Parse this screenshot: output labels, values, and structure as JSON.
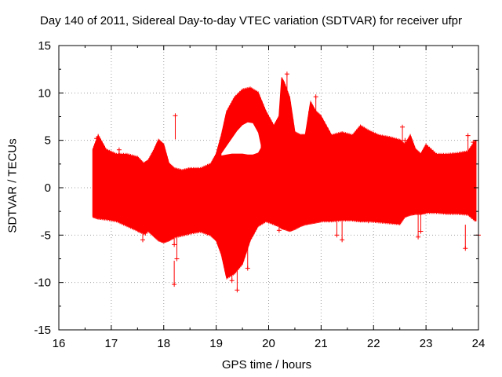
{
  "chart_data": {
    "type": "scatter",
    "title": "Day 140 of 2011, Sidereal Day-to-day VTEC variation (SDTVAR) for receiver ufpr",
    "xlabel": "GPS time / hours",
    "ylabel": "SDTVAR / TECUs",
    "xlim": [
      16,
      24
    ],
    "ylim": [
      -15,
      15
    ],
    "xticks": [
      "16",
      "17",
      "18",
      "19",
      "20",
      "21",
      "22",
      "23",
      "24"
    ],
    "yticks": [
      "-15",
      "-10",
      "-5",
      "0",
      "5",
      "10",
      "15"
    ],
    "grid": true,
    "series": [
      {
        "name": "SDTVAR",
        "color": "#ff0000",
        "marker": "+",
        "envelope": {
          "x": [
            16.65,
            16.75,
            16.9,
            17.1,
            17.3,
            17.5,
            17.62,
            17.7,
            17.8,
            17.9,
            18.0,
            18.1,
            18.2,
            18.35,
            18.5,
            18.7,
            18.9,
            19.0,
            19.1,
            19.2,
            19.35,
            19.5,
            19.65,
            19.8,
            19.95,
            20.1,
            20.2,
            20.25,
            20.3,
            20.4,
            20.5,
            20.6,
            20.7,
            20.8,
            20.9,
            21.0,
            21.2,
            21.4,
            21.6,
            21.75,
            21.9,
            22.1,
            22.3,
            22.5,
            22.6,
            22.7,
            22.8,
            22.9,
            23.0,
            23.2,
            23.4,
            23.6,
            23.8,
            23.95
          ],
          "upper": [
            4.0,
            5.5,
            4.0,
            3.5,
            3.5,
            3.2,
            2.5,
            2.8,
            3.8,
            5.0,
            4.5,
            2.5,
            2.0,
            1.8,
            2.0,
            2.0,
            2.5,
            3.5,
            5.5,
            8.0,
            9.5,
            10.3,
            10.5,
            10.0,
            8.0,
            6.5,
            7.5,
            11.5,
            11.0,
            9.5,
            5.8,
            5.5,
            5.5,
            9.0,
            8.0,
            7.5,
            5.5,
            5.8,
            5.5,
            6.5,
            6.0,
            5.5,
            5.3,
            5.0,
            4.5,
            5.5,
            4.0,
            3.5,
            4.5,
            3.5,
            3.5,
            3.6,
            3.8,
            5.0
          ],
          "lower": [
            -3.0,
            -3.2,
            -3.3,
            -3.5,
            -4.0,
            -4.5,
            -4.8,
            -4.5,
            -5.0,
            -5.5,
            -5.7,
            -5.5,
            -5.2,
            -5.0,
            -4.8,
            -4.6,
            -5.0,
            -5.5,
            -7.0,
            -9.5,
            -9.0,
            -8.0,
            -5.5,
            -4.0,
            -3.5,
            -3.8,
            -4.0,
            -4.2,
            -4.3,
            -4.5,
            -4.3,
            -4.0,
            -3.8,
            -3.7,
            -3.6,
            -3.5,
            -3.5,
            -3.4,
            -3.4,
            -3.5,
            -3.5,
            -3.6,
            -3.7,
            -3.8,
            -3.0,
            -2.8,
            -2.7,
            -2.7,
            -2.6,
            -2.6,
            -2.7,
            -2.7,
            -2.8,
            -3.5
          ]
        },
        "inner_gap": {
          "x": [
            19.1,
            19.2,
            19.3,
            19.4,
            19.5,
            19.6,
            19.7,
            19.8,
            19.85
          ],
          "upper": [
            3.6,
            4.4,
            5.2,
            6.0,
            6.6,
            6.9,
            6.8,
            5.8,
            4.5
          ],
          "lower": [
            3.4,
            3.5,
            3.6,
            3.6,
            3.6,
            3.5,
            3.5,
            3.7,
            4.2
          ]
        },
        "outliers": {
          "x": [
            18.22,
            18.2,
            18.25,
            18.2,
            17.6,
            17.65,
            16.72,
            20.35,
            21.4,
            21.9,
            22.55,
            22.6,
            22.85,
            22.9,
            23.75,
            23.8,
            24.0,
            19.4,
            19.6,
            19.3,
            20.2,
            20.9,
            20.8,
            21.3,
            23.9,
            17.15
          ],
          "y": [
            7.6,
            -10.2,
            -7.5,
            -6.0,
            -5.5,
            -4.8,
            5.2,
            12.0,
            -5.5,
            -3.5,
            6.4,
            5.0,
            -5.2,
            -4.6,
            -6.4,
            5.5,
            -5.0,
            -10.8,
            -8.5,
            -9.8,
            -4.5,
            9.6,
            8.0,
            -5.0,
            4.8,
            4.0
          ]
        }
      }
    ]
  }
}
